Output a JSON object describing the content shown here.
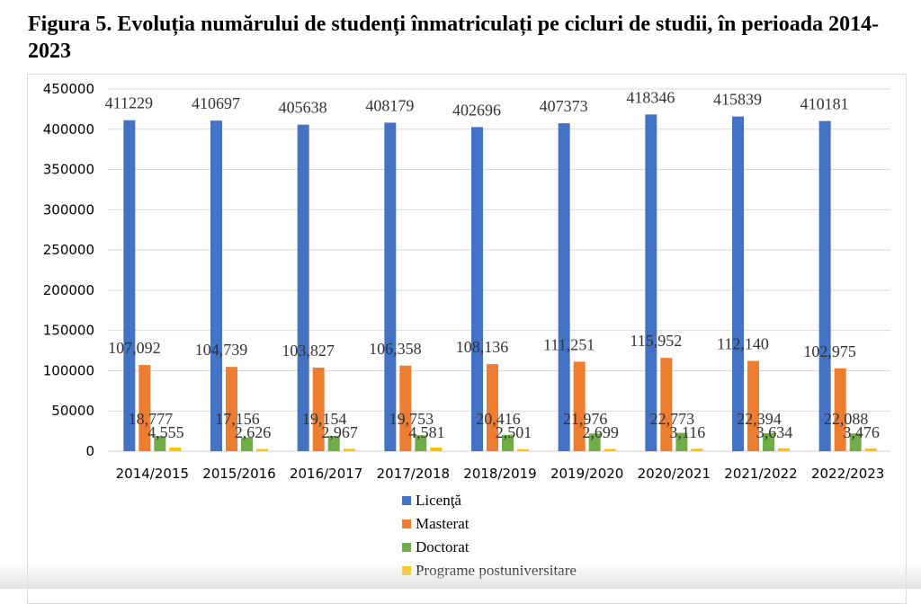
{
  "chart_data": {
    "type": "bar",
    "title": "Figura 5. Evoluția numărului de studenți înmatriculați pe cicluri de studii, în perioada 2014-2023",
    "xlabel": "",
    "ylabel": "",
    "ylim": [
      0,
      450000
    ],
    "yticks": [
      "0",
      "50000",
      "100000",
      "150000",
      "200000",
      "250000",
      "300000",
      "350000",
      "400000",
      "450000"
    ],
    "grid": true,
    "legend_position": "bottom",
    "categories": [
      "2014/2015",
      "2015/2016",
      "2016/2017",
      "2017/2018",
      "2018/2019",
      "2019/2020",
      "2020/2021",
      "2021/2022",
      "2022/2023"
    ],
    "series": [
      {
        "name": "Licenţă",
        "color": "#4472c4",
        "values": [
          411229,
          410697,
          405638,
          408179,
          402696,
          407373,
          418346,
          415839,
          410181
        ],
        "labels": [
          "411229",
          "410697",
          "405638",
          "408179",
          "402696",
          "407373",
          "418346",
          "415839",
          "410181"
        ]
      },
      {
        "name": "Masterat",
        "color": "#ed7d31",
        "values": [
          107092,
          104739,
          103827,
          106358,
          108136,
          111251,
          115952,
          112140,
          102975
        ],
        "labels": [
          "107,092",
          "104,739",
          "103,827",
          "106,358",
          "108,136",
          "111,251",
          "115,952",
          "112,140",
          "102,975"
        ]
      },
      {
        "name": "Doctorat",
        "color": "#70ad47",
        "values": [
          18777,
          17156,
          19154,
          19753,
          20416,
          21976,
          22773,
          22394,
          22088
        ],
        "labels": [
          "18,777",
          "17,156",
          "19,154",
          "19,753",
          "20,416",
          "21,976",
          "22,773",
          "22,394",
          "22,088"
        ]
      },
      {
        "name": "Programe postuniversitare",
        "color": "#ffc000",
        "values": [
          4555,
          2626,
          2967,
          4581,
          2501,
          2699,
          3116,
          3634,
          3476
        ],
        "labels": [
          "4,555",
          "2,626",
          "2,967",
          "4,581",
          "2,501",
          "2,699",
          "3,116",
          "3,634",
          "3,476"
        ]
      }
    ]
  }
}
